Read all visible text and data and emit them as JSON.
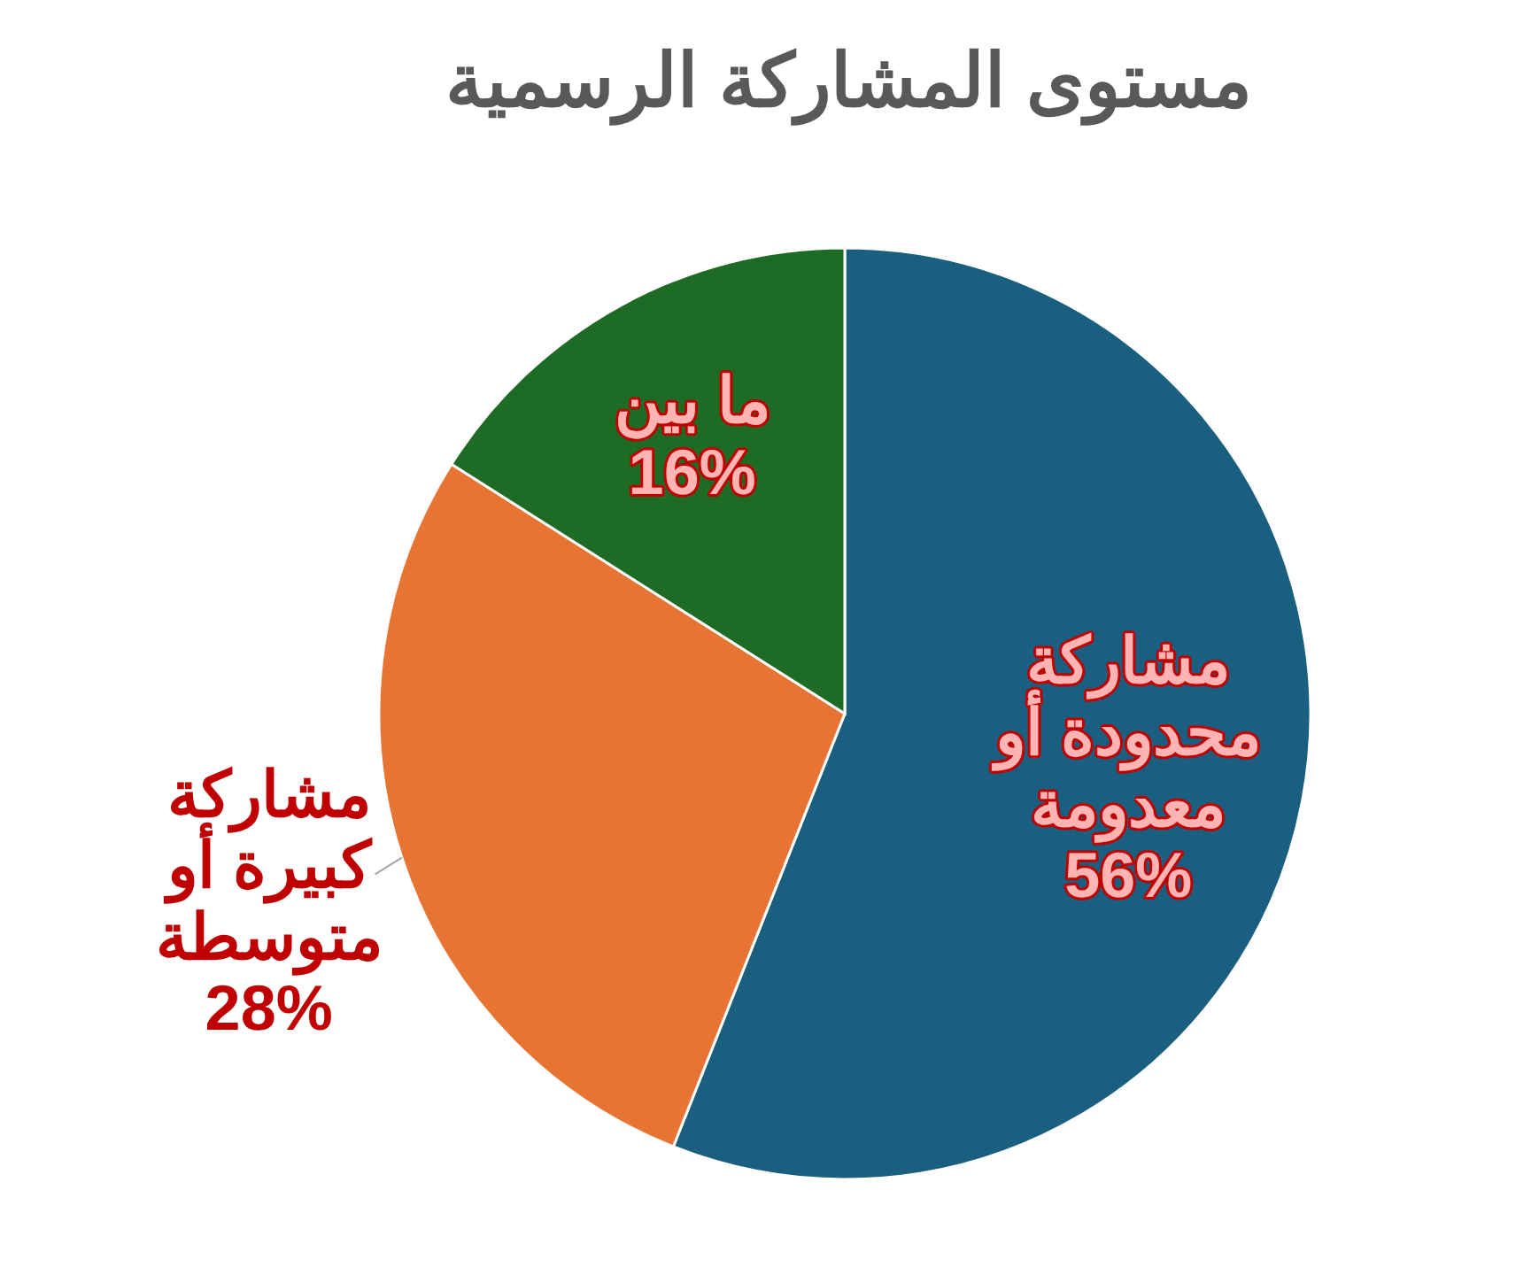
{
  "chart_data": {
    "type": "pie",
    "title": "مستوى المشاركة الرسمية",
    "categories": [
      "مشاركة محدودة أو معدومة",
      "مشاركة كبيرة أو متوسطة",
      "ما بين"
    ],
    "values": [
      56,
      28,
      16
    ],
    "value_labels": [
      "56%",
      "28%",
      "16%"
    ],
    "colors": [
      "#1a5e80",
      "#e87433",
      "#1e6b25"
    ]
  }
}
